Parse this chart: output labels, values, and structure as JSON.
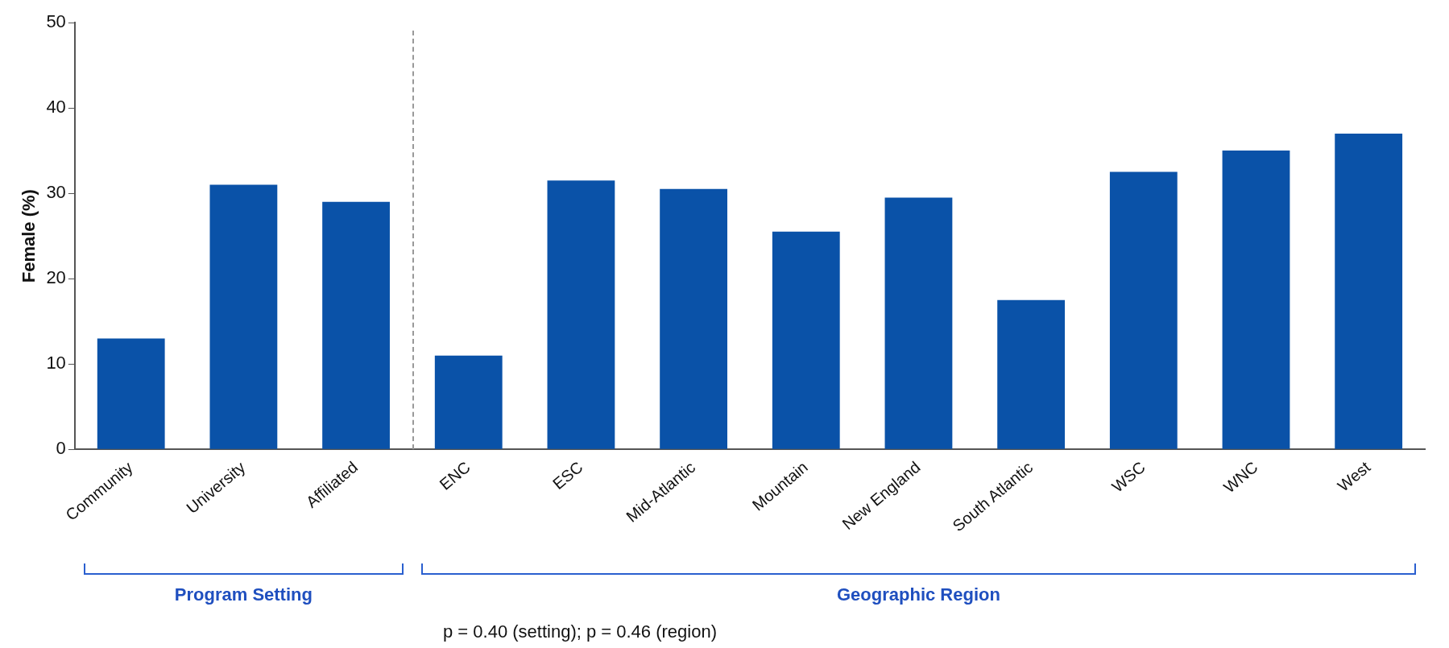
{
  "chart_data": {
    "type": "bar",
    "ylabel": "Female (%)",
    "categories": [
      "Community",
      "University",
      "Affiliated",
      "ENC",
      "ESC",
      "Mid-Atlantic",
      "Mountain",
      "New England",
      "South Atlantic",
      "WSC",
      "WNC",
      "West"
    ],
    "values": [
      13,
      31,
      29,
      11,
      31.5,
      30.5,
      25.5,
      29.5,
      17.5,
      32.5,
      35,
      37
    ],
    "color": "#0a52a8",
    "ylim": [
      0,
      50
    ],
    "yticks": [
      0,
      10,
      20,
      30,
      40,
      50
    ],
    "annotations": [
      "Program Setting",
      "Geographic Region",
      "p = 0.40 (setting); p = 0.46 (region)"
    ]
  }
}
